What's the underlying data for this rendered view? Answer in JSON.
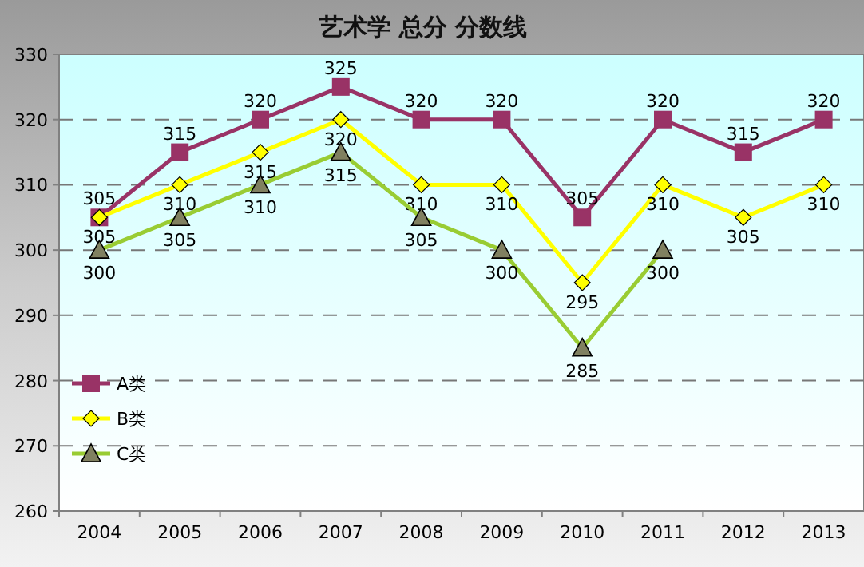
{
  "chart_data": {
    "type": "line",
    "title": "艺术学   总分   分数线",
    "categories": [
      "2004",
      "2005",
      "2006",
      "2007",
      "2008",
      "2009",
      "2010",
      "2011",
      "2012",
      "2013"
    ],
    "series": [
      {
        "name": "A类",
        "color": "#993366",
        "marker": "square",
        "values": [
          305,
          315,
          320,
          325,
          320,
          320,
          305,
          320,
          315,
          320
        ]
      },
      {
        "name": "B类",
        "color": "#ffff00",
        "marker": "diamond",
        "values": [
          305,
          310,
          315,
          320,
          310,
          310,
          295,
          310,
          305,
          310
        ]
      },
      {
        "name": "C类",
        "color": "#99cc33",
        "marker": "triangle",
        "values": [
          300,
          305,
          310,
          315,
          305,
          300,
          285,
          300,
          null,
          null
        ]
      }
    ],
    "ylim": [
      260,
      330
    ],
    "yticks": [
      260,
      270,
      280,
      290,
      300,
      310,
      320,
      330
    ],
    "grid": "y",
    "legend": "bottom left",
    "data_labels": true
  }
}
